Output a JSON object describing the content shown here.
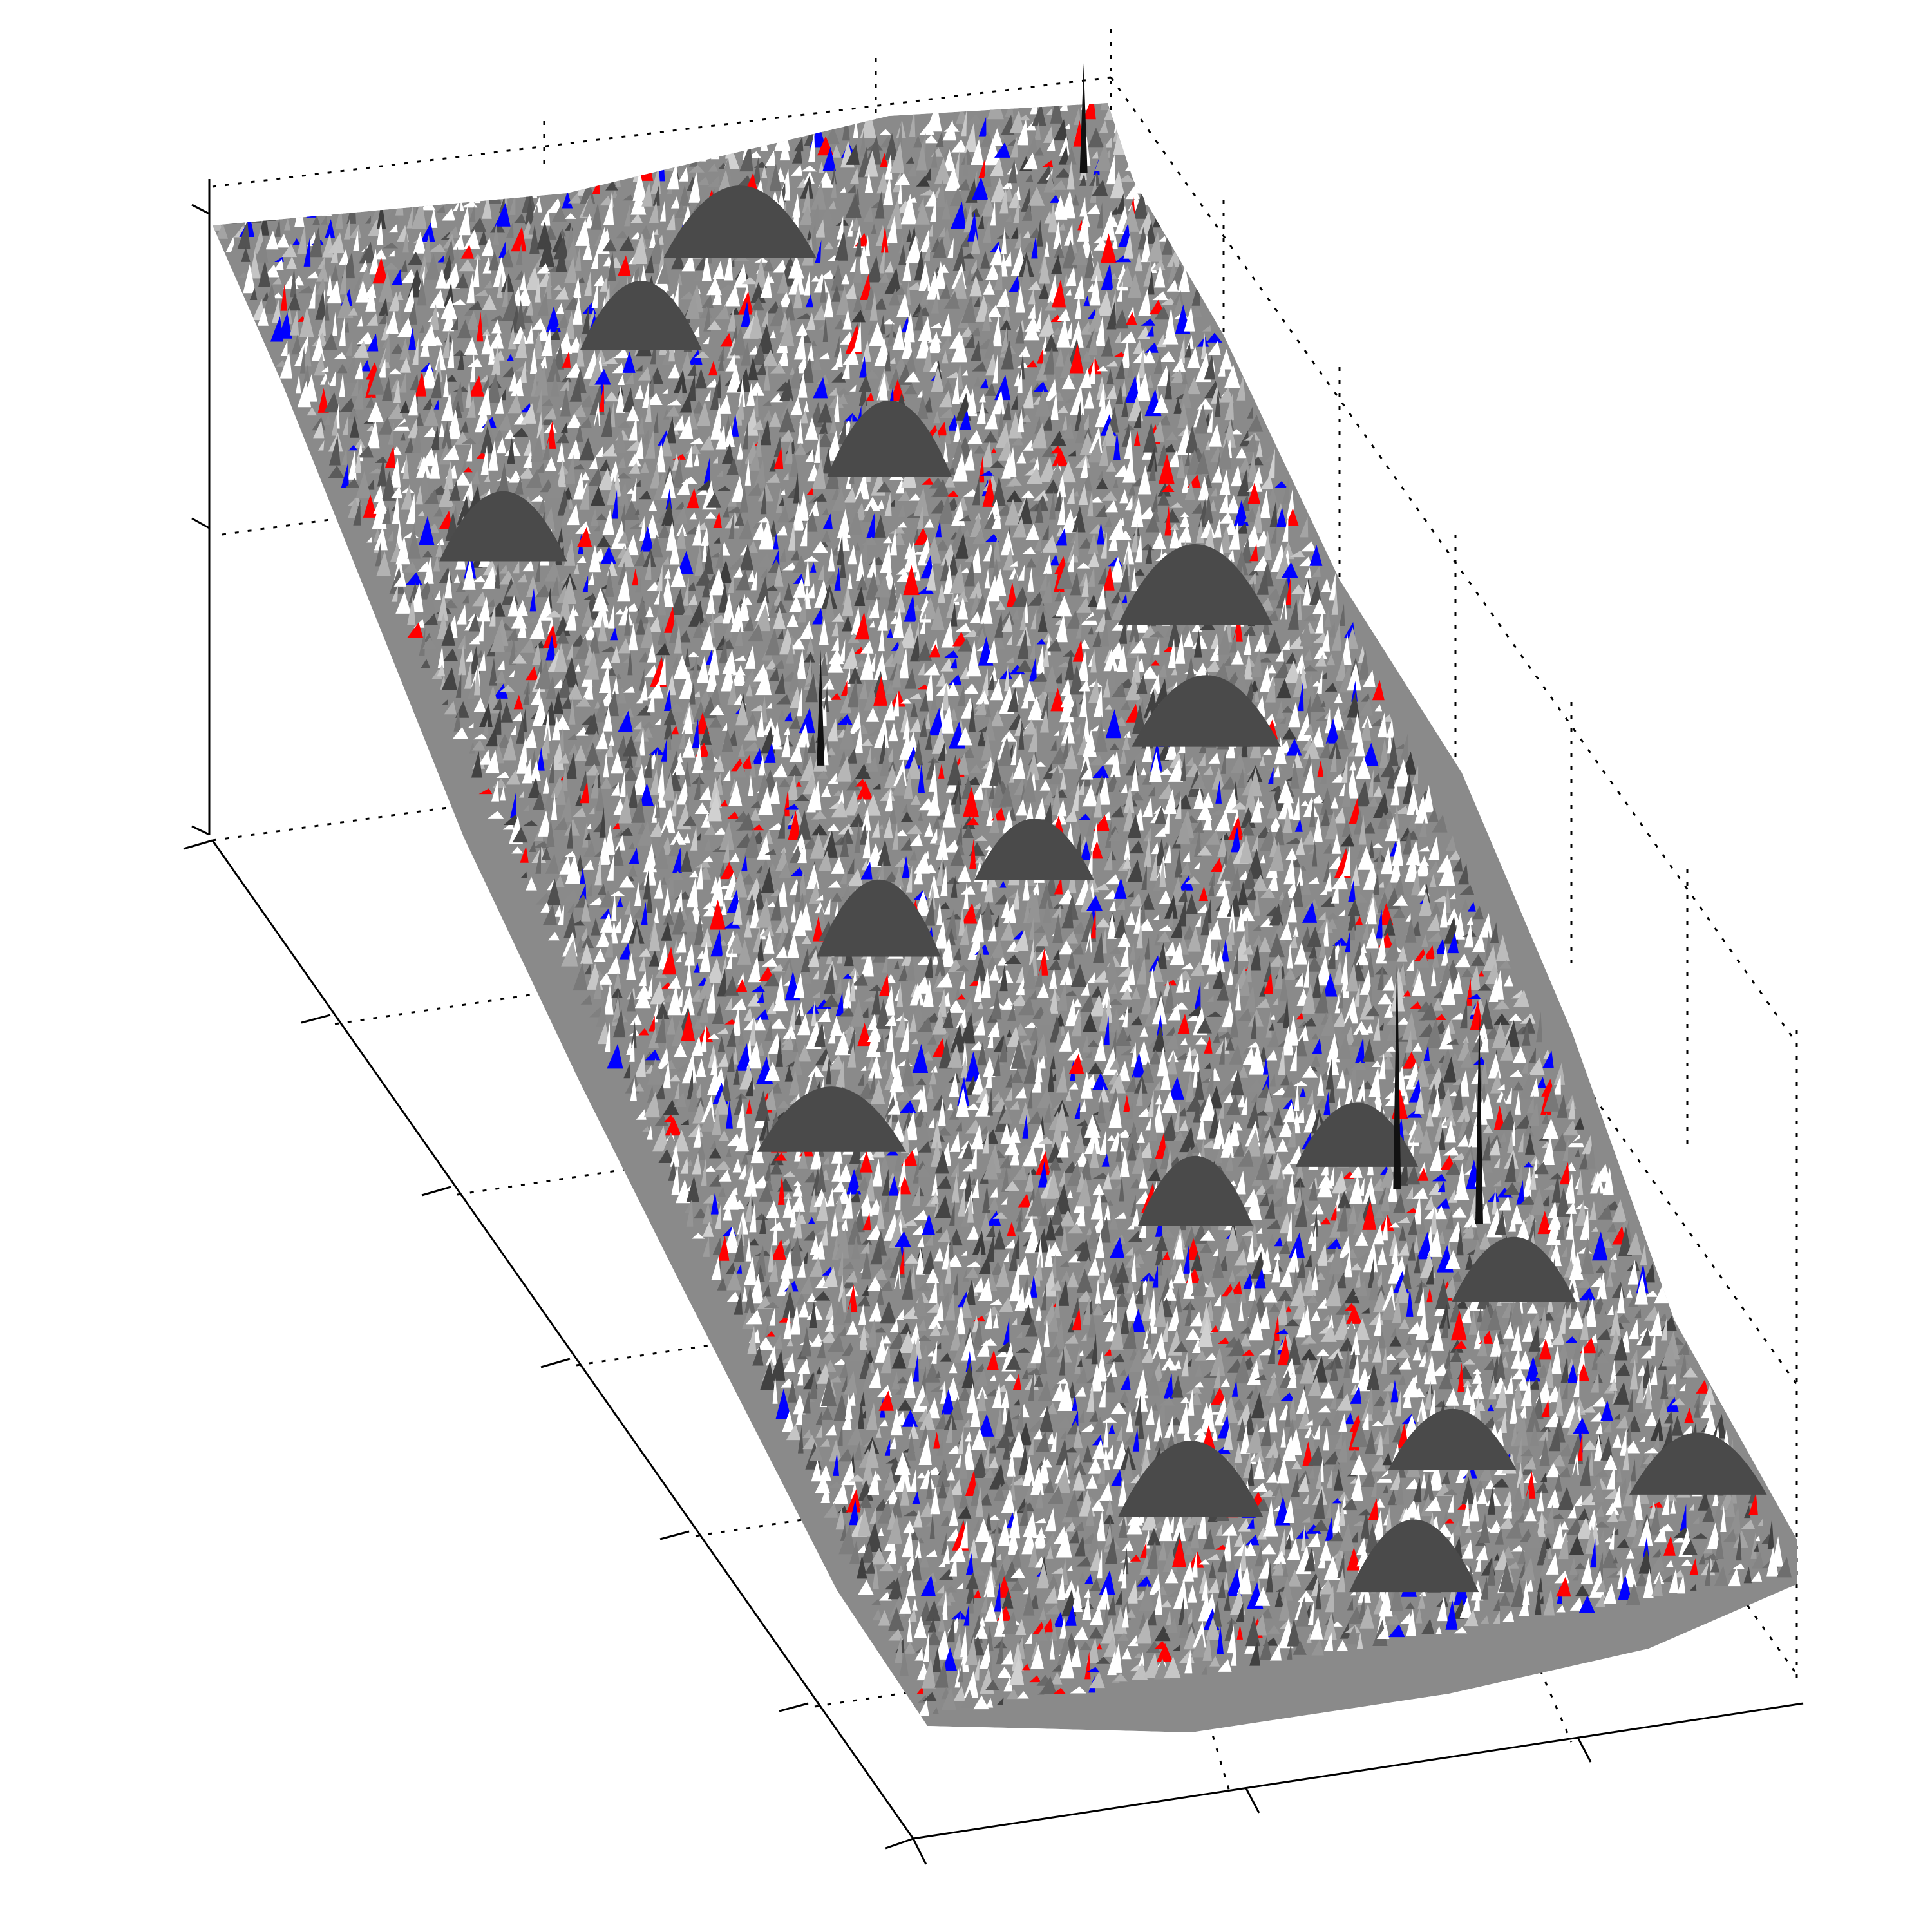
{
  "figure": {
    "kind": "3d-surface-render",
    "axes_labels_visible": false,
    "tick_labels_visible": false,
    "grid": "dotted",
    "surface_shading": "grayscale",
    "highlight_colors": {
      "positive": "#ff0000",
      "negative": "#0000ff"
    },
    "axis_color": "#000000",
    "background": "#ffffff"
  }
}
